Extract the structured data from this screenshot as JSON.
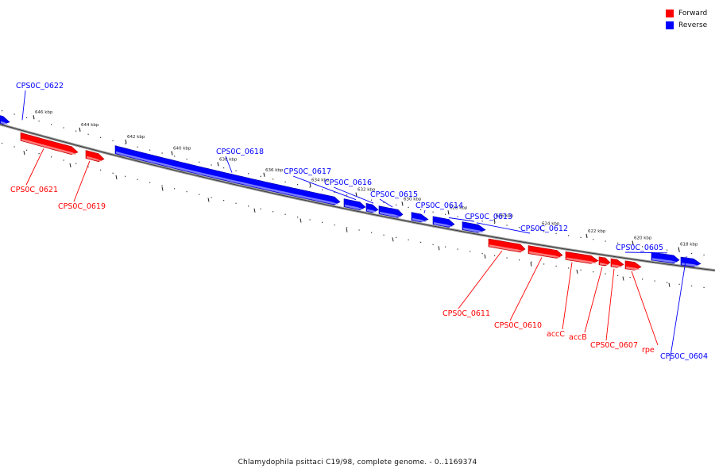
{
  "legend": {
    "forward_label": "Forward",
    "reverse_label": "Reverse",
    "forward_color": "#ff0000",
    "reverse_color": "#0000ff"
  },
  "caption": "Chlamydophila psittaci C19/98, complete genome. - 0..1169374",
  "ticks": [
    {
      "kbp": 646,
      "label": "646 kbp"
    },
    {
      "kbp": 644,
      "label": "644 kbp"
    },
    {
      "kbp": 642,
      "label": "642 kbp"
    },
    {
      "kbp": 640,
      "label": "640 kbp"
    },
    {
      "kbp": 638,
      "label": "638 kbp"
    },
    {
      "kbp": 636,
      "label": "636 kbp"
    },
    {
      "kbp": 634,
      "label": "634 kbp"
    },
    {
      "kbp": 632,
      "label": "632 kbp"
    },
    {
      "kbp": 630,
      "label": "630 kbp"
    },
    {
      "kbp": 628,
      "label": "628 kbp"
    },
    {
      "kbp": 626,
      "label": "626 kbp"
    },
    {
      "kbp": 624,
      "label": "624 kbp"
    },
    {
      "kbp": 622,
      "label": "622 kbp"
    },
    {
      "kbp": 620,
      "label": "620 kbp"
    },
    {
      "kbp": 618,
      "label": "618 kbp"
    }
  ],
  "genes": [
    {
      "name": "CPS0C_0622",
      "strand": "reverse"
    },
    {
      "name": "CPS0C_0621",
      "strand": "forward"
    },
    {
      "name": "CPS0C_0619",
      "strand": "forward"
    },
    {
      "name": "CPS0C_0618",
      "strand": "reverse"
    },
    {
      "name": "CPS0C_0617",
      "strand": "reverse"
    },
    {
      "name": "CPS0C_0616",
      "strand": "reverse"
    },
    {
      "name": "CPS0C_0615",
      "strand": "reverse"
    },
    {
      "name": "CPS0C_0614",
      "strand": "reverse"
    },
    {
      "name": "CPS0C_0613",
      "strand": "reverse"
    },
    {
      "name": "CPS0C_0612",
      "strand": "reverse"
    },
    {
      "name": "CPS0C_0611",
      "strand": "forward"
    },
    {
      "name": "CPS0C_0610",
      "strand": "forward"
    },
    {
      "name": "accC",
      "strand": "forward"
    },
    {
      "name": "accB",
      "strand": "forward"
    },
    {
      "name": "CPS0C_0607",
      "strand": "forward"
    },
    {
      "name": "rpe",
      "strand": "forward"
    },
    {
      "name": "CPS0C_0605",
      "strand": "reverse"
    },
    {
      "name": "CPS0C_0604",
      "strand": "reverse"
    }
  ]
}
